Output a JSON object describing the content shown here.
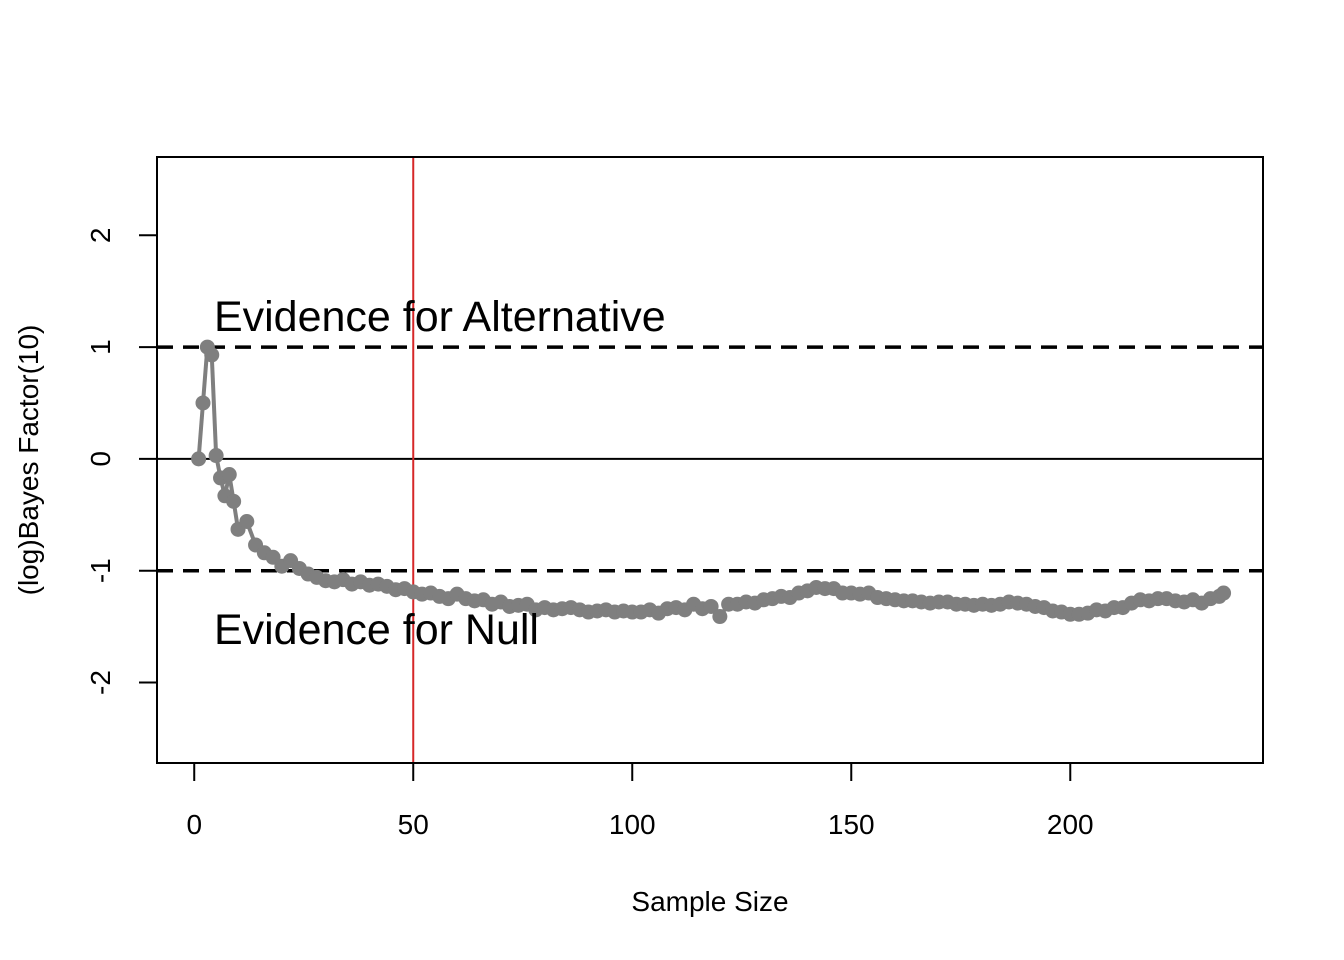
{
  "chart_data": {
    "type": "scatter",
    "title": "",
    "xlabel": "Sample Size",
    "ylabel": "(log)Bayes Factor(10)",
    "xlim": [
      -8.5,
      244
    ],
    "ylim": [
      -2.72,
      2.7
    ],
    "xticks": [
      "0",
      "50",
      "100",
      "150",
      "200"
    ],
    "yticks": [
      "-2",
      "-1",
      "0",
      "1",
      "2"
    ],
    "grid": false,
    "legend": "none",
    "series_color": "#7f7f7f",
    "reference_lines": {
      "zero_line": {
        "y": 0,
        "color": "#000000",
        "style": "solid"
      },
      "upper_threshold": {
        "y": 1,
        "color": "#000000",
        "style": "dashed"
      },
      "lower_threshold": {
        "y": -1,
        "color": "#000000",
        "style": "dashed"
      },
      "marker_line": {
        "x": 50,
        "color": "#d62728",
        "style": "solid"
      }
    },
    "annotations": [
      {
        "text": "Evidence for Alternative",
        "x": 4.5,
        "y": 1.28
      },
      {
        "text": "Evidence for Null",
        "x": 4.5,
        "y": -1.52
      }
    ],
    "series": [
      {
        "x": [
          1,
          2,
          3,
          4,
          5,
          6,
          7,
          8,
          9,
          10,
          12,
          14,
          16,
          18,
          20,
          22,
          24,
          26,
          28,
          30,
          32,
          34,
          36,
          38,
          40,
          42,
          44,
          46,
          48,
          50,
          52,
          54,
          56,
          58,
          60,
          62,
          64,
          66,
          68,
          70,
          72,
          74,
          76,
          78,
          80,
          82,
          84,
          86,
          88,
          90,
          92,
          94,
          96,
          98,
          100,
          102,
          104,
          106,
          108,
          110,
          112,
          114,
          116,
          118,
          120,
          122,
          124,
          126,
          128,
          130,
          132,
          134,
          136,
          138,
          140,
          142,
          144,
          146,
          148,
          150,
          152,
          154,
          156,
          158,
          160,
          162,
          164,
          166,
          168,
          170,
          172,
          174,
          176,
          178,
          180,
          182,
          184,
          186,
          188,
          190,
          192,
          194,
          196,
          198,
          200,
          202,
          204,
          206,
          208,
          210,
          212,
          214,
          216,
          218,
          220,
          222,
          224,
          226,
          228,
          230,
          232,
          234,
          235
        ],
        "values": [
          0.0,
          0.5,
          1.0,
          0.93,
          0.03,
          -0.17,
          -0.33,
          -0.14,
          -0.38,
          -0.63,
          -0.56,
          -0.77,
          -0.84,
          -0.88,
          -0.96,
          -0.91,
          -0.98,
          -1.03,
          -1.06,
          -1.09,
          -1.1,
          -1.08,
          -1.12,
          -1.1,
          -1.13,
          -1.12,
          -1.14,
          -1.17,
          -1.16,
          -1.19,
          -1.21,
          -1.2,
          -1.23,
          -1.25,
          -1.21,
          -1.25,
          -1.27,
          -1.26,
          -1.3,
          -1.28,
          -1.32,
          -1.31,
          -1.3,
          -1.35,
          -1.33,
          -1.35,
          -1.34,
          -1.33,
          -1.35,
          -1.37,
          -1.36,
          -1.35,
          -1.37,
          -1.36,
          -1.37,
          -1.37,
          -1.35,
          -1.38,
          -1.34,
          -1.33,
          -1.35,
          -1.3,
          -1.34,
          -1.32,
          -1.41,
          -1.3,
          -1.3,
          -1.28,
          -1.29,
          -1.26,
          -1.25,
          -1.23,
          -1.24,
          -1.2,
          -1.18,
          -1.15,
          -1.16,
          -1.16,
          -1.2,
          -1.2,
          -1.21,
          -1.2,
          -1.24,
          -1.25,
          -1.26,
          -1.27,
          -1.27,
          -1.28,
          -1.29,
          -1.28,
          -1.28,
          -1.3,
          -1.3,
          -1.31,
          -1.3,
          -1.31,
          -1.3,
          -1.28,
          -1.29,
          -1.3,
          -1.32,
          -1.33,
          -1.36,
          -1.37,
          -1.39,
          -1.39,
          -1.38,
          -1.35,
          -1.36,
          -1.33,
          -1.33,
          -1.29,
          -1.26,
          -1.27,
          -1.25,
          -1.25,
          -1.27,
          -1.28,
          -1.26,
          -1.29,
          -1.25,
          -1.23,
          -1.2
        ]
      }
    ]
  }
}
